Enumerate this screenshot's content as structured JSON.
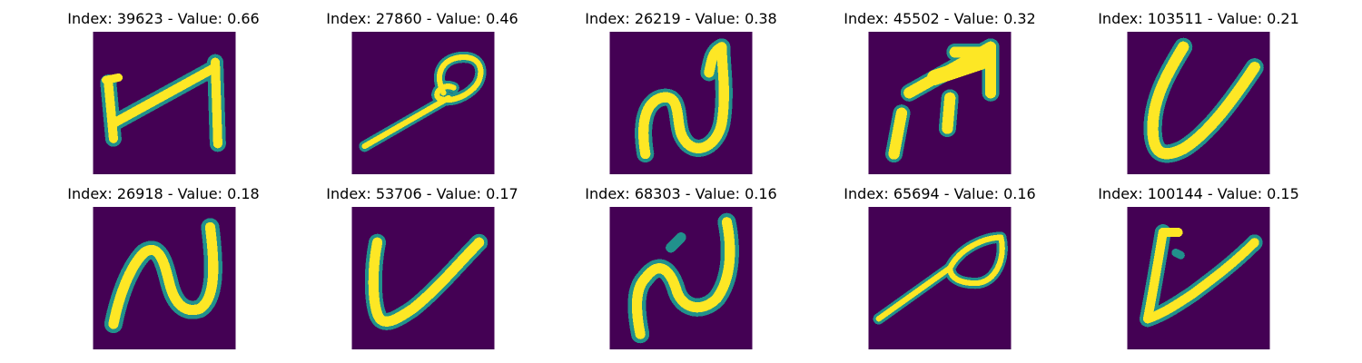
{
  "chart_data": {
    "type": "heatmap",
    "colormap": "viridis",
    "background_color": "#440154",
    "stroke_colors": [
      "#21918c",
      "#5ec962",
      "#fde725"
    ],
    "grid": false,
    "panels": [
      {
        "title": "Index: 39623 - Value: 0.66",
        "index": 39623,
        "value": 0.66,
        "glyph": "H-like"
      },
      {
        "title": "Index: 27860 - Value: 0.46",
        "index": 27860,
        "value": 0.46,
        "glyph": "looped stroke"
      },
      {
        "title": "Index: 26219 - Value: 0.38",
        "index": 26219,
        "value": 0.38,
        "glyph": "N-like"
      },
      {
        "title": "Index: 45502 - Value: 0.32",
        "index": 45502,
        "value": 0.32,
        "glyph": "arrow-like"
      },
      {
        "title": "Index: 103511 - Value: 0.21",
        "index": 103511,
        "value": 0.21,
        "glyph": "V-like"
      },
      {
        "title": "Index: 26918 - Value: 0.18",
        "index": 26918,
        "value": 0.18,
        "glyph": "N-like"
      },
      {
        "title": "Index: 53706 - Value: 0.17",
        "index": 53706,
        "value": 0.17,
        "glyph": "V-like"
      },
      {
        "title": "Index: 68303 - Value: 0.16",
        "index": 68303,
        "value": 0.16,
        "glyph": "N-like"
      },
      {
        "title": "Index: 65694 - Value: 0.16",
        "index": 65694,
        "value": 0.16,
        "glyph": "looped stroke"
      },
      {
        "title": "Index: 100144 - Value: 0.15",
        "index": 100144,
        "value": 0.15,
        "glyph": "V-like"
      }
    ]
  }
}
